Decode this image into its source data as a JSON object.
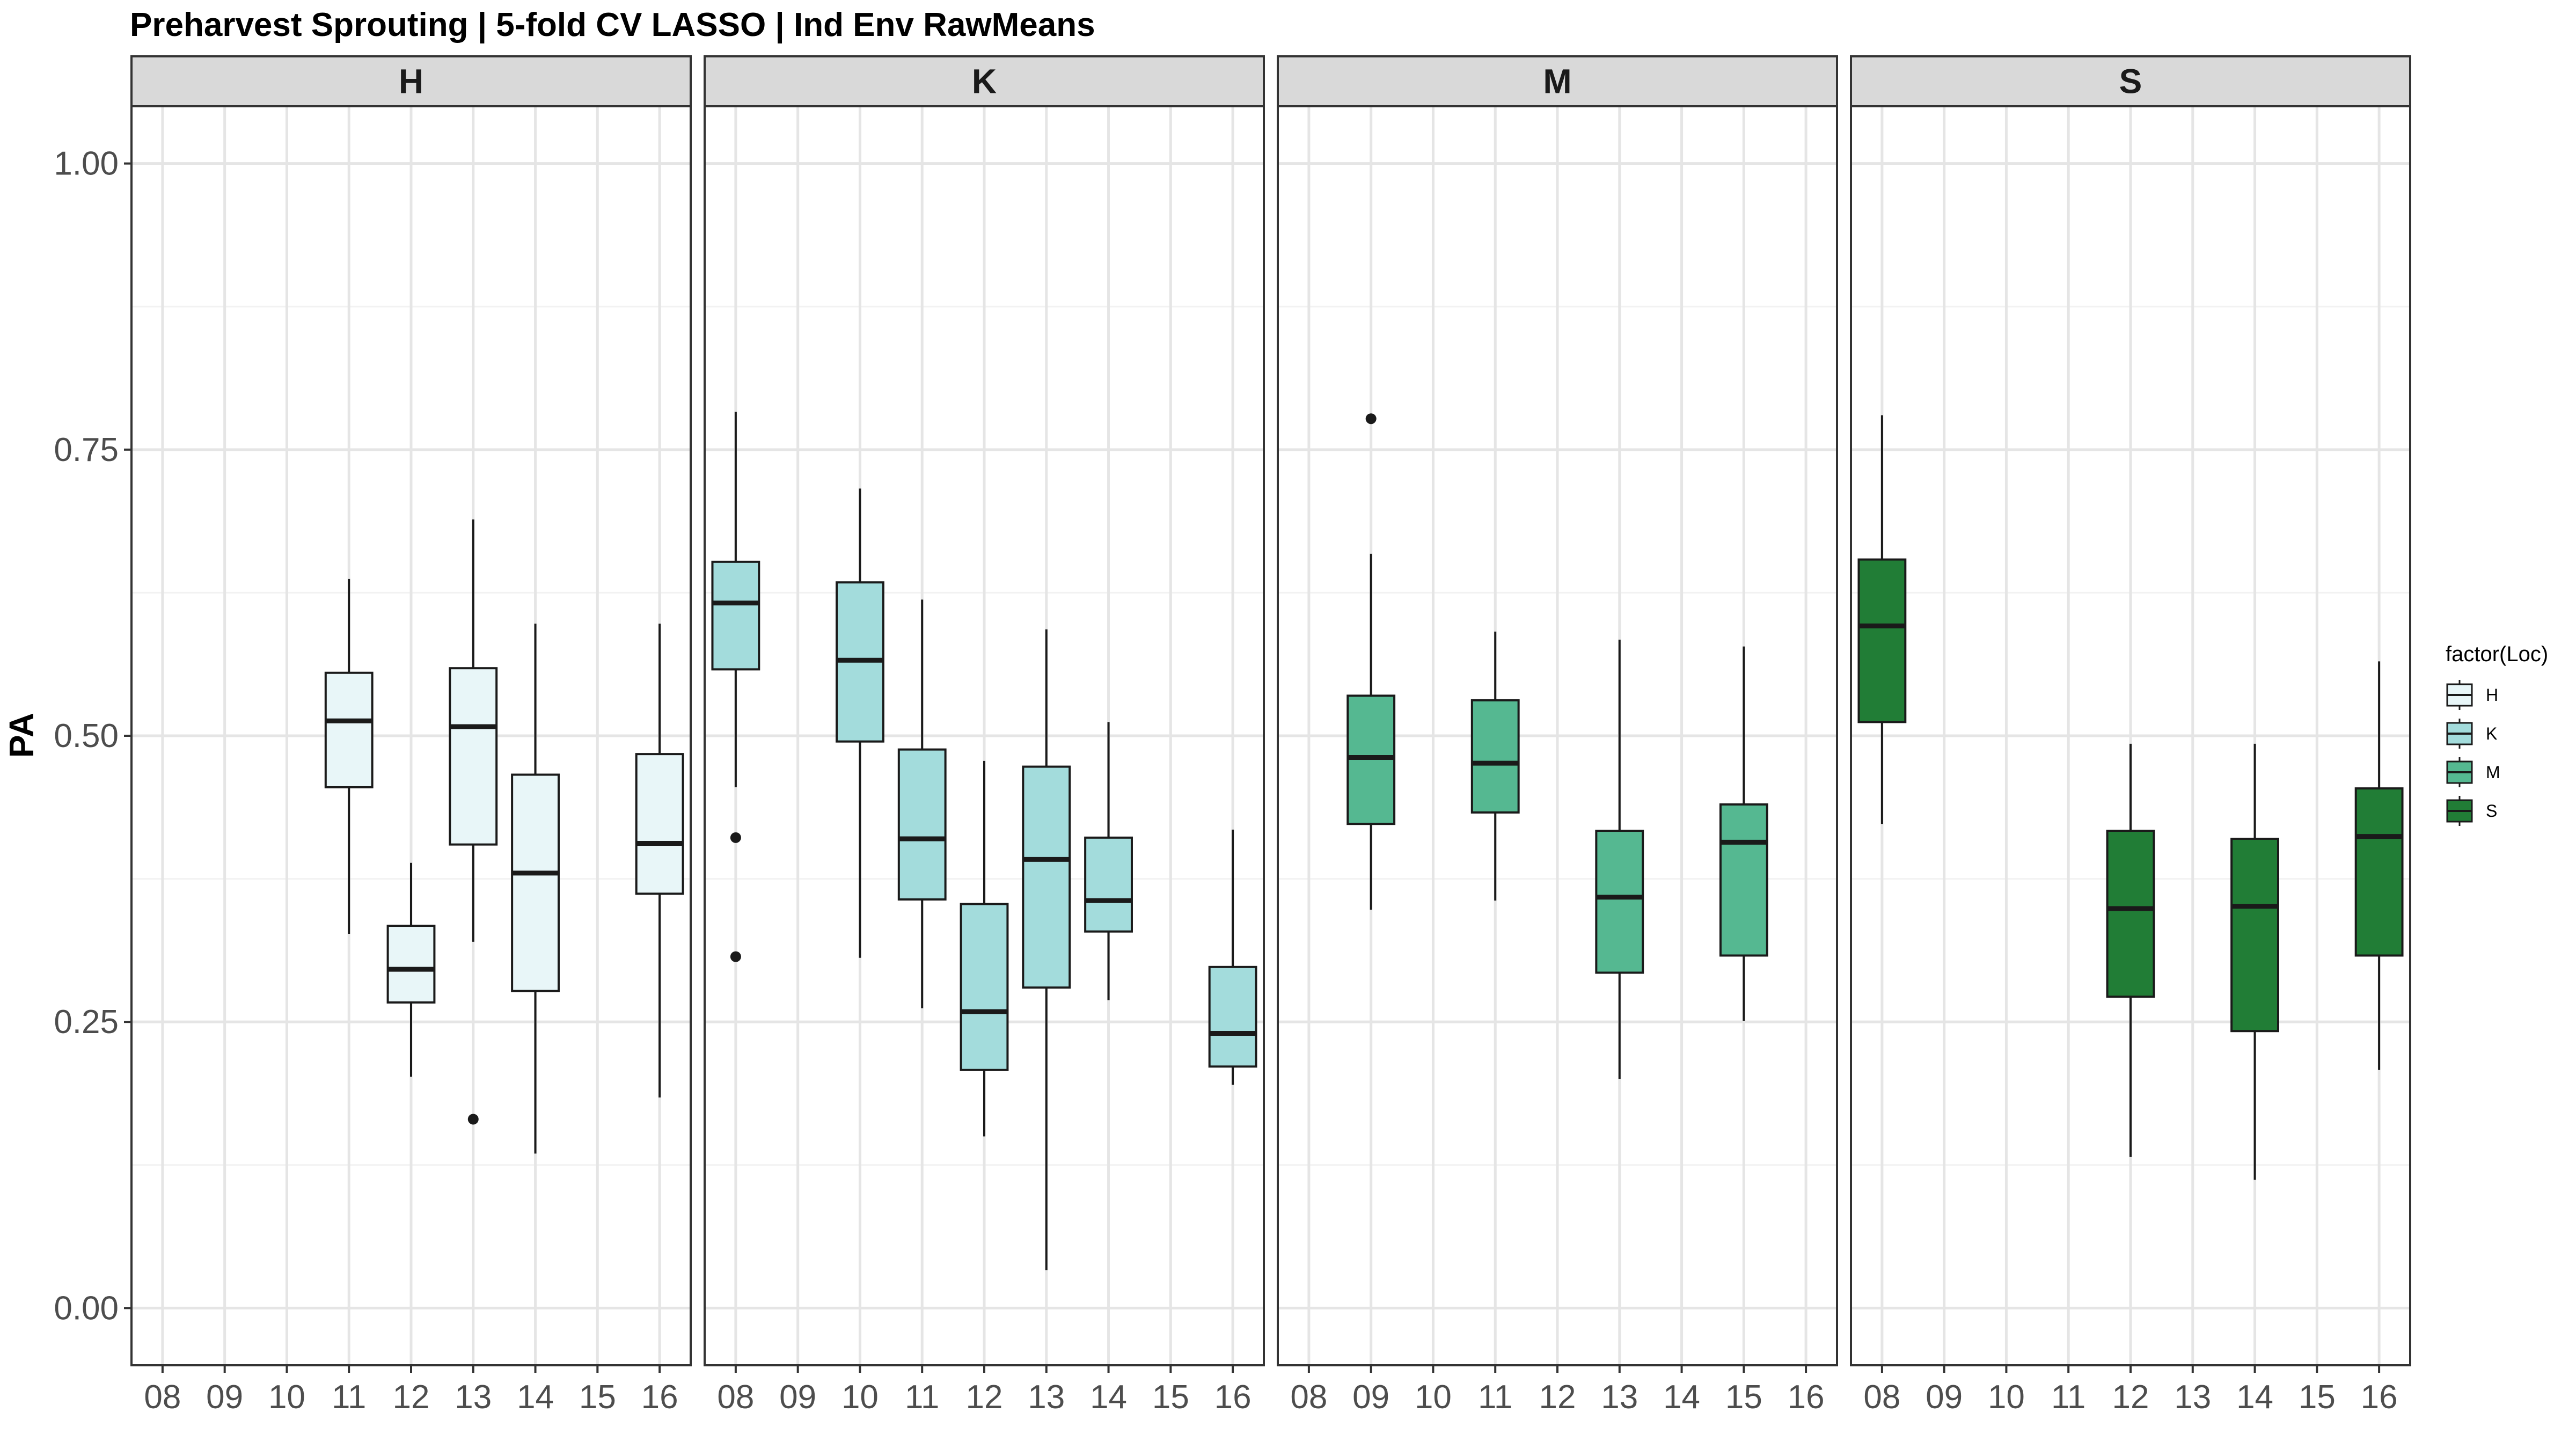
{
  "chart_data": {
    "type": "boxplot",
    "title": "Preharvest Sprouting | 5-fold CV  LASSO | Ind Env RawMeans",
    "ylabel": "PA",
    "xlabel": "",
    "ylim": [
      -0.05,
      1.05
    ],
    "yticks": [
      "0.00",
      "0.25",
      "0.50",
      "0.75",
      "1.00"
    ],
    "ytick_values": [
      0,
      0.25,
      0.5,
      0.75,
      1.0
    ],
    "categories": [
      "08",
      "09",
      "10",
      "11",
      "12",
      "13",
      "14",
      "15",
      "16"
    ],
    "grid": true,
    "legend": {
      "title": "factor(Loc)",
      "position": "right",
      "entries": [
        {
          "label": "H",
          "color": "#E8F6F8"
        },
        {
          "label": "K",
          "color": "#A3DCDC"
        },
        {
          "label": "M",
          "color": "#55B891"
        },
        {
          "label": "S",
          "color": "#217D36"
        }
      ]
    },
    "facets": [
      {
        "label": "H",
        "color": "#E8F6F8",
        "boxes": [
          {
            "x": "11",
            "whisker_low": 0.327,
            "q1": 0.455,
            "median": 0.513,
            "q3": 0.555,
            "whisker_high": 0.637,
            "outliers": []
          },
          {
            "x": "12",
            "whisker_low": 0.202,
            "q1": 0.267,
            "median": 0.296,
            "q3": 0.334,
            "whisker_high": 0.389,
            "outliers": []
          },
          {
            "x": "13",
            "whisker_low": 0.32,
            "q1": 0.405,
            "median": 0.508,
            "q3": 0.559,
            "whisker_high": 0.689,
            "outliers": [
              0.165
            ]
          },
          {
            "x": "14",
            "whisker_low": 0.135,
            "q1": 0.277,
            "median": 0.38,
            "q3": 0.466,
            "whisker_high": 0.598,
            "outliers": []
          },
          {
            "x": "16",
            "whisker_low": 0.184,
            "q1": 0.362,
            "median": 0.406,
            "q3": 0.484,
            "whisker_high": 0.598,
            "outliers": []
          }
        ]
      },
      {
        "label": "K",
        "color": "#A3DCDC",
        "boxes": [
          {
            "x": "08",
            "whisker_low": 0.455,
            "q1": 0.558,
            "median": 0.616,
            "q3": 0.652,
            "whisker_high": 0.783,
            "outliers": [
              0.411,
              0.307
            ]
          },
          {
            "x": "10",
            "whisker_low": 0.306,
            "q1": 0.495,
            "median": 0.566,
            "q3": 0.634,
            "whisker_high": 0.716,
            "outliers": []
          },
          {
            "x": "11",
            "whisker_low": 0.262,
            "q1": 0.357,
            "median": 0.41,
            "q3": 0.488,
            "whisker_high": 0.619,
            "outliers": []
          },
          {
            "x": "12",
            "whisker_low": 0.15,
            "q1": 0.208,
            "median": 0.259,
            "q3": 0.353,
            "whisker_high": 0.478,
            "outliers": []
          },
          {
            "x": "13",
            "whisker_low": 0.033,
            "q1": 0.28,
            "median": 0.392,
            "q3": 0.473,
            "whisker_high": 0.593,
            "outliers": []
          },
          {
            "x": "14",
            "whisker_low": 0.269,
            "q1": 0.329,
            "median": 0.356,
            "q3": 0.411,
            "whisker_high": 0.512,
            "outliers": []
          },
          {
            "x": "16",
            "whisker_low": 0.195,
            "q1": 0.211,
            "median": 0.24,
            "q3": 0.298,
            "whisker_high": 0.418,
            "outliers": []
          }
        ]
      },
      {
        "label": "M",
        "color": "#55B891",
        "boxes": [
          {
            "x": "09",
            "whisker_low": 0.348,
            "q1": 0.423,
            "median": 0.481,
            "q3": 0.535,
            "whisker_high": 0.659,
            "outliers": [
              0.777
            ]
          },
          {
            "x": "11",
            "whisker_low": 0.356,
            "q1": 0.433,
            "median": 0.476,
            "q3": 0.531,
            "whisker_high": 0.591,
            "outliers": []
          },
          {
            "x": "13",
            "whisker_low": 0.2,
            "q1": 0.293,
            "median": 0.359,
            "q3": 0.417,
            "whisker_high": 0.584,
            "outliers": []
          },
          {
            "x": "15",
            "whisker_low": 0.251,
            "q1": 0.308,
            "median": 0.407,
            "q3": 0.44,
            "whisker_high": 0.578,
            "outliers": []
          }
        ]
      },
      {
        "label": "S",
        "color": "#217D36",
        "boxes": [
          {
            "x": "08",
            "whisker_low": 0.423,
            "q1": 0.512,
            "median": 0.596,
            "q3": 0.654,
            "whisker_high": 0.78,
            "outliers": []
          },
          {
            "x": "12",
            "whisker_low": 0.132,
            "q1": 0.272,
            "median": 0.349,
            "q3": 0.417,
            "whisker_high": 0.493,
            "outliers": []
          },
          {
            "x": "14",
            "whisker_low": 0.112,
            "q1": 0.242,
            "median": 0.351,
            "q3": 0.41,
            "whisker_high": 0.493,
            "outliers": []
          },
          {
            "x": "16",
            "whisker_low": 0.208,
            "q1": 0.308,
            "median": 0.412,
            "q3": 0.454,
            "whisker_high": 0.565,
            "outliers": []
          }
        ]
      }
    ]
  }
}
